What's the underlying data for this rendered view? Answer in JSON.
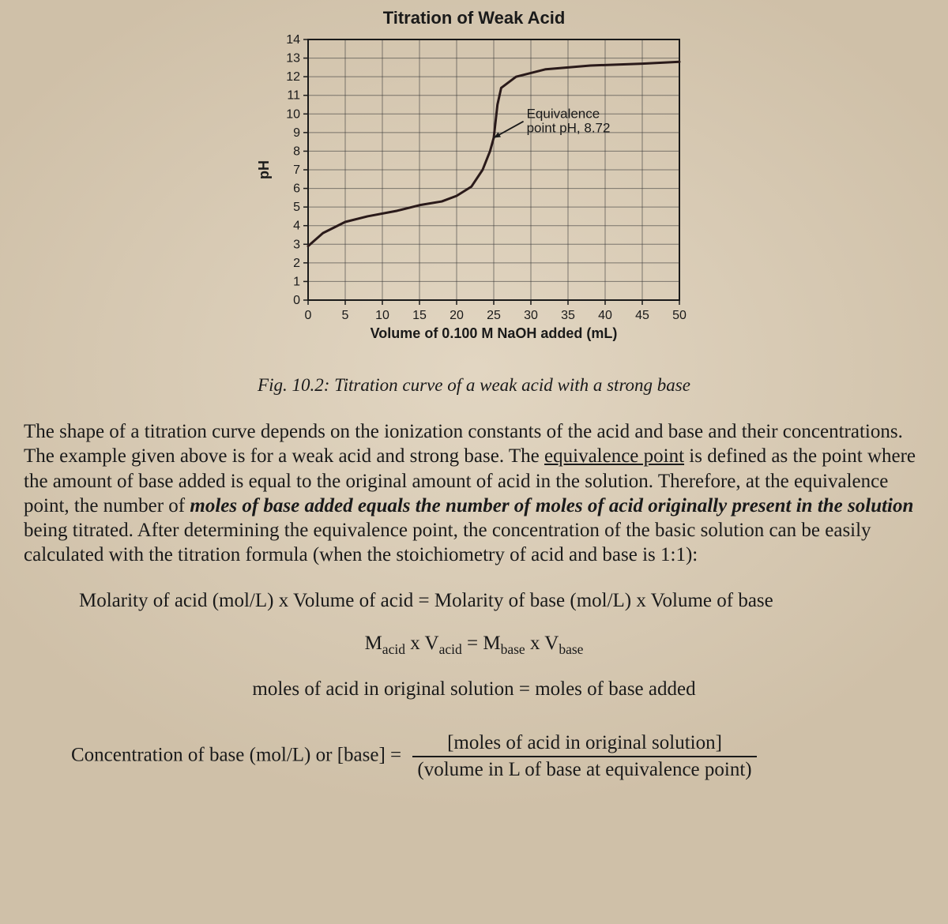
{
  "chart": {
    "type": "line",
    "title": "Titration of Weak Acid",
    "title_fontsize": 22,
    "xlabel": "Volume of 0.100 M NaOH added (mL)",
    "ylabel": "pH",
    "label_fontsize": 18,
    "tick_fontsize": 16,
    "xlim": [
      0,
      50
    ],
    "ylim": [
      0,
      14
    ],
    "xtick_step": 5,
    "ytick_step": 1,
    "xticks": [
      0,
      5,
      10,
      15,
      20,
      25,
      30,
      35,
      40,
      45,
      50
    ],
    "yticks": [
      0,
      1,
      2,
      3,
      4,
      5,
      6,
      7,
      8,
      9,
      10,
      11,
      12,
      13,
      14
    ],
    "line_color": "#2a1a1a",
    "line_width": 3,
    "grid_color": "#3a3a3a",
    "grid_width": 1,
    "background_color": "transparent",
    "annotation": {
      "text_line1": "Equivalence",
      "text_line2": "point pH, 8.72",
      "fontsize": 17,
      "arrow_from": [
        29,
        9.6
      ],
      "arrow_to": [
        25,
        8.72
      ]
    },
    "curve": [
      [
        0,
        2.9
      ],
      [
        2,
        3.6
      ],
      [
        5,
        4.2
      ],
      [
        8,
        4.5
      ],
      [
        12,
        4.8
      ],
      [
        15,
        5.1
      ],
      [
        18,
        5.3
      ],
      [
        20,
        5.6
      ],
      [
        22,
        6.1
      ],
      [
        23.5,
        7.0
      ],
      [
        24.5,
        8.0
      ],
      [
        25,
        8.72
      ],
      [
        25.5,
        10.5
      ],
      [
        26,
        11.4
      ],
      [
        28,
        12.0
      ],
      [
        32,
        12.4
      ],
      [
        38,
        12.6
      ],
      [
        45,
        12.7
      ],
      [
        50,
        12.8
      ]
    ]
  },
  "caption": "Fig. 10.2: Titration curve of a weak acid with a strong base",
  "paragraph": {
    "p1": "The shape of a titration curve depends on the ionization constants of the acid and base and their concentrations.  The example given above is for a weak acid and strong base.  The ",
    "p2_u": "equivalence point",
    "p3": " is defined as the point where the amount of base added is equal to the original amount of acid in the solution.  Therefore, at the equivalence point, the number of ",
    "p4_bi": "moles of base added equals the number of moles of acid originally present in the solution",
    "p5": " being titrated.  After determining the equivalence point, the concentration of the basic solution can be easily calculated with the titration formula (when the stoichiometry of acid and base is 1:1):"
  },
  "equations": {
    "eq1": "Molarity of acid (mol/L) x Volume of acid = Molarity of base (mol/L) x Volume of base",
    "eq2_html": "M<sub>acid</sub> x V<sub>acid</sub> = M<sub>base</sub> x V<sub>base</sub>",
    "eq2": {
      "Ma": "M",
      "sa": "acid",
      "x": " x ",
      "Va": "V",
      "eq": " = ",
      "Mb": "M",
      "sb": "base",
      "Vb": "V"
    },
    "eq3": "moles of acid in original solution = moles of base added",
    "eq4_left": "Concentration of base (mol/L) or [base] = ",
    "eq4_num": "[moles of acid in original solution]",
    "eq4_den": "(volume in L of base at equivalence point)"
  }
}
